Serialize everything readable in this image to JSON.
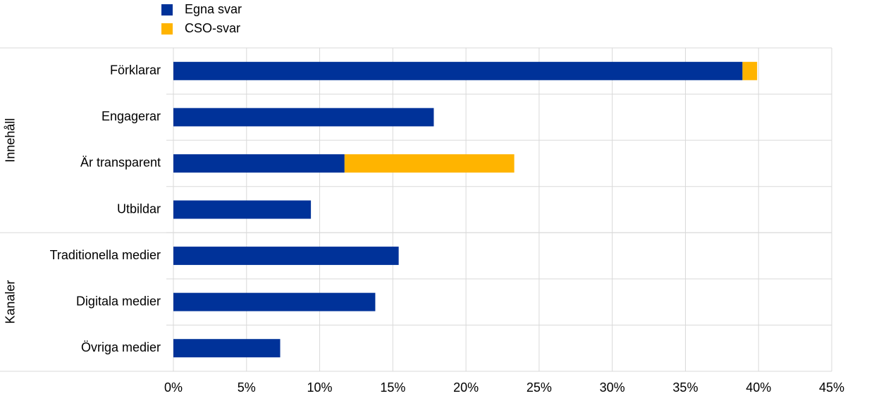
{
  "chart_data": {
    "type": "bar",
    "orientation": "horizontal",
    "stacked": true,
    "categories": [
      "Förklarar",
      "Engagerar",
      "Är transparent",
      "Utbildar",
      "Traditionella medier",
      "Digitala medier",
      "Övriga medier"
    ],
    "groups": [
      {
        "name": "Innehåll",
        "count": 4
      },
      {
        "name": "Kanaler",
        "count": 3
      }
    ],
    "series": [
      {
        "name": "Egna svar",
        "color": "#003299",
        "values": [
          38.9,
          17.8,
          11.7,
          9.4,
          15.4,
          13.8,
          7.3
        ]
      },
      {
        "name": "CSO-svar",
        "color": "#ffb400",
        "values": [
          1.0,
          0,
          11.6,
          0,
          0,
          0,
          0
        ]
      }
    ],
    "xlim": [
      0,
      45
    ],
    "xticks": [
      {
        "value": 0,
        "label": "0%"
      },
      {
        "value": 5,
        "label": "5%"
      },
      {
        "value": 10,
        "label": "10%"
      },
      {
        "value": 15,
        "label": "15%"
      },
      {
        "value": 20,
        "label": "20%"
      },
      {
        "value": 25,
        "label": "25%"
      },
      {
        "value": 30,
        "label": "30%"
      },
      {
        "value": 35,
        "label": "35%"
      },
      {
        "value": 40,
        "label": "40%"
      },
      {
        "value": 45,
        "label": "45%"
      }
    ],
    "grid": true,
    "legend": "top-left"
  }
}
